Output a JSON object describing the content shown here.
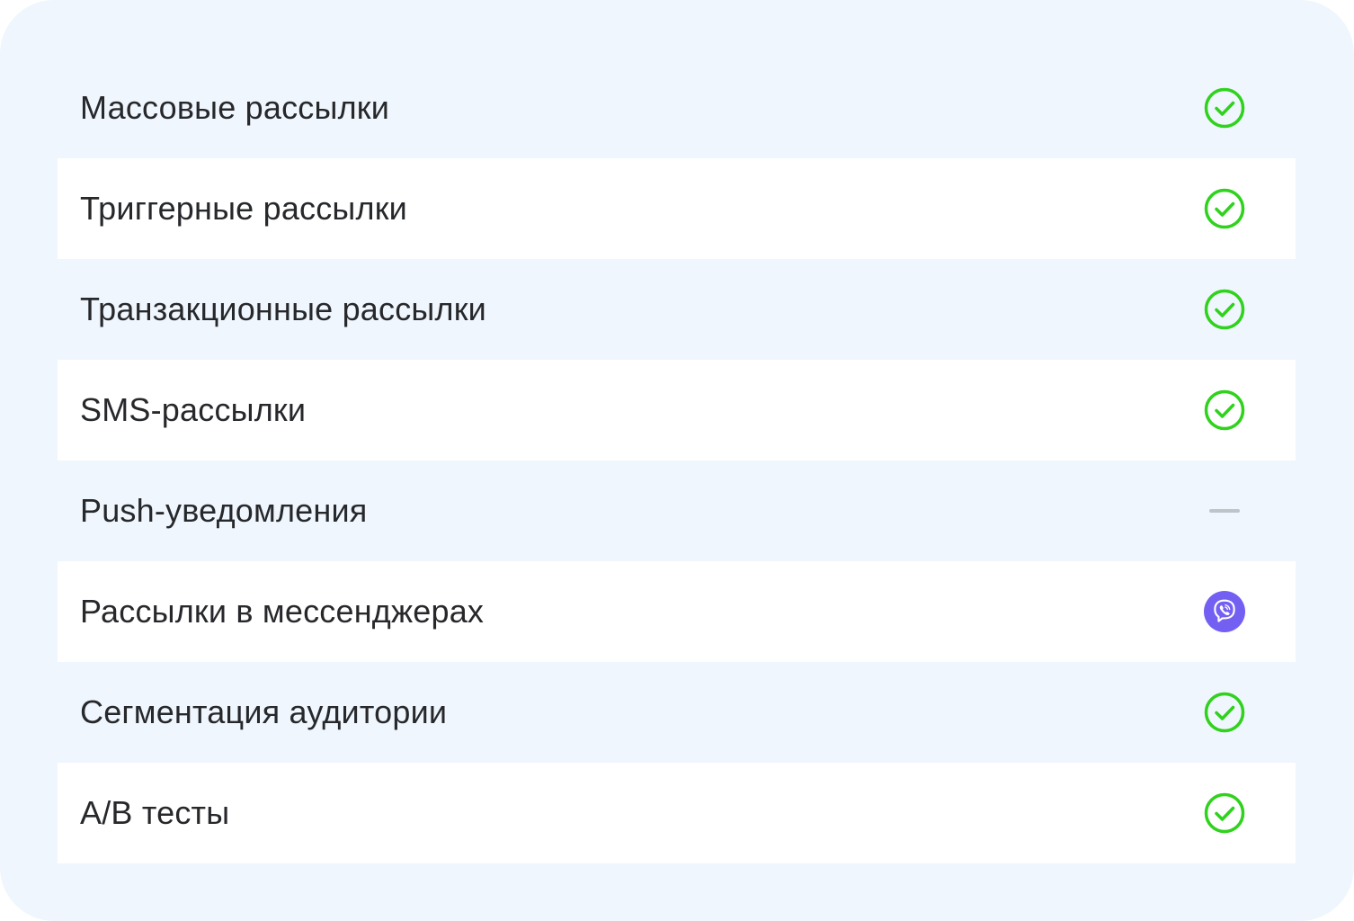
{
  "colors": {
    "check": "#2fd21c",
    "viber": "#7360f2",
    "dash": "#bfc4c9"
  },
  "features": [
    {
      "label": "Массовые рассылки",
      "status": "check-icon"
    },
    {
      "label": "Триггерные рассылки",
      "status": "check-icon"
    },
    {
      "label": "Транзакционные рассылки",
      "status": "check-icon"
    },
    {
      "label": "SMS-рассылки",
      "status": "check-icon"
    },
    {
      "label": "Push-уведомления",
      "status": "dash-icon"
    },
    {
      "label": "Рассылки в мессенджерах",
      "status": "viber-icon"
    },
    {
      "label": "Сегментация аудитории",
      "status": "check-icon"
    },
    {
      "label": "A/B тесты",
      "status": "check-icon"
    }
  ]
}
